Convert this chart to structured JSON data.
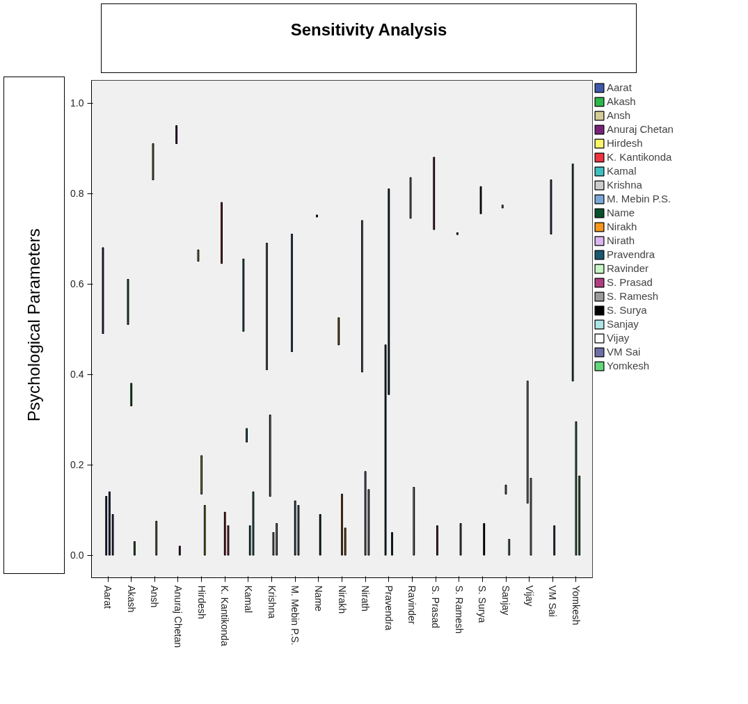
{
  "chart_data": {
    "type": "bar",
    "title": "Sensitivity Analysis",
    "ylabel": "Psychological Parameters",
    "categories": [
      "Aarat",
      "Akash",
      "Ansh",
      "Anuraj Chetan",
      "Hirdesh",
      "K. Kantikonda",
      "Kamal",
      "Krishna",
      "M. Mebin P.S.",
      "Name",
      "Nirakh",
      "Nirath",
      "Pravendra",
      "Ravinder",
      "S. Prasad",
      "S. Ramesh",
      "S. Surya",
      "Sanjay",
      "Vijay",
      "VM Sai",
      "Yomkesh"
    ],
    "ylim": [
      -0.05,
      1.05
    ],
    "yticks": [
      {
        "value": 0,
        "label": "0.0"
      },
      {
        "value": 0.2,
        "label": "0.2"
      },
      {
        "value": 0.4,
        "label": "0.4"
      },
      {
        "value": 0.6,
        "label": "0.6"
      },
      {
        "value": 0.8,
        "label": "0.8"
      },
      {
        "value": 1,
        "label": "1.0"
      }
    ],
    "grid": false,
    "legend": "right",
    "series": [
      {
        "name": "Aarat",
        "color": "#3e58ac",
        "x": [
          "Aarat",
          "Aarat",
          "Aarat",
          "Aarat"
        ],
        "base": [
          0.49,
          0,
          0,
          0
        ],
        "values": [
          0.19,
          0.13,
          0.14,
          0.09
        ]
      },
      {
        "name": "Akash",
        "color": "#2db84a",
        "x": [
          "Akash",
          "Akash",
          "Akash"
        ],
        "base": [
          0.51,
          0.33,
          0
        ],
        "values": [
          0.1,
          0.05,
          0.03
        ]
      },
      {
        "name": "Ansh",
        "color": "#d4cc96",
        "x": [
          "Ansh",
          "Ansh"
        ],
        "base": [
          0.83,
          0
        ],
        "values": [
          0.08,
          0.075
        ]
      },
      {
        "name": "Anuraj Chetan",
        "color": "#79207b",
        "x": [
          "Anuraj Chetan",
          "Anuraj Chetan"
        ],
        "base": [
          0.91,
          0
        ],
        "values": [
          0.04,
          0.02
        ]
      },
      {
        "name": "Hirdesh",
        "color": "#fbf56a",
        "x": [
          "Hirdesh",
          "Hirdesh",
          "Hirdesh"
        ],
        "base": [
          0.65,
          0.135,
          0
        ],
        "values": [
          0.025,
          0.085,
          0.11
        ]
      },
      {
        "name": "K. Kantikonda",
        "color": "#ef3340",
        "x": [
          "K. Kantikonda",
          "K. Kantikonda",
          "K. Kantikonda"
        ],
        "base": [
          0.645,
          0,
          0
        ],
        "values": [
          0.135,
          0.095,
          0.065
        ]
      },
      {
        "name": "Kamal",
        "color": "#3fbfc0",
        "x": [
          "Kamal",
          "Kamal",
          "Kamal",
          "Kamal"
        ],
        "base": [
          0.495,
          0.25,
          0,
          0
        ],
        "values": [
          0.16,
          0.03,
          0.065,
          0.14
        ]
      },
      {
        "name": "Krishna",
        "color": "#cccccc",
        "x": [
          "Krishna",
          "Krishna",
          "Krishna",
          "Krishna"
        ],
        "base": [
          0.41,
          0.13,
          0,
          0
        ],
        "values": [
          0.28,
          0.18,
          0.05,
          0.07
        ]
      },
      {
        "name": "M. Mebin P.S.",
        "color": "#7aa7d8",
        "x": [
          "M. Mebin P.S.",
          "M. Mebin P.S.",
          "M. Mebin P.S."
        ],
        "base": [
          0.45,
          0,
          0
        ],
        "values": [
          0.26,
          0.12,
          0.11
        ]
      },
      {
        "name": "Name",
        "color": "#08502a",
        "x": [
          "Name",
          "Name"
        ],
        "base": [
          0.748,
          0
        ],
        "values": [
          0.004,
          0.09
        ]
      },
      {
        "name": "Nirakh",
        "color": "#f8961e",
        "x": [
          "Nirakh",
          "Nirakh",
          "Nirakh"
        ],
        "base": [
          0.465,
          0,
          0
        ],
        "values": [
          0.06,
          0.135,
          0.06
        ]
      },
      {
        "name": "Nirath",
        "color": "#dcb6ee",
        "x": [
          "Nirath",
          "Nirath",
          "Nirath"
        ],
        "base": [
          0.405,
          0,
          0
        ],
        "values": [
          0.335,
          0.185,
          0.145
        ]
      },
      {
        "name": "Pravendra",
        "color": "#19596e",
        "x": [
          "Pravendra",
          "Pravendra",
          "Pravendra"
        ],
        "base": [
          0,
          0.355,
          0
        ],
        "values": [
          0.465,
          0.455,
          0.05
        ]
      },
      {
        "name": "Ravinder",
        "color": "#c8f5c6",
        "x": [
          "Ravinder",
          "Ravinder"
        ],
        "base": [
          0.745,
          0
        ],
        "values": [
          0.09,
          0.15
        ]
      },
      {
        "name": "S. Prasad",
        "color": "#b23c82",
        "x": [
          "S. Prasad",
          "S. Prasad"
        ],
        "base": [
          0.72,
          0
        ],
        "values": [
          0.16,
          0.065
        ]
      },
      {
        "name": "S. Ramesh",
        "color": "#9a9a9a",
        "x": [
          "S. Ramesh",
          "S. Ramesh"
        ],
        "base": [
          0.709,
          0
        ],
        "values": [
          0.004,
          0.07
        ]
      },
      {
        "name": "S. Surya",
        "color": "#000000",
        "x": [
          "S. Surya",
          "S. Surya"
        ],
        "base": [
          0.755,
          0
        ],
        "values": [
          0.06,
          0.07
        ]
      },
      {
        "name": "Sanjay",
        "color": "#ade4e6",
        "x": [
          "Sanjay",
          "Sanjay",
          "Sanjay"
        ],
        "base": [
          0.768,
          0.135,
          0
        ],
        "values": [
          0.006,
          0.02,
          0.035
        ]
      },
      {
        "name": "Vijay",
        "color": "#ffffff",
        "x": [
          "Vijay",
          "Vijay"
        ],
        "base": [
          0.115,
          0
        ],
        "values": [
          0.27,
          0.17
        ]
      },
      {
        "name": "VM Sai",
        "color": "#706ea8",
        "x": [
          "VM Sai",
          "VM Sai"
        ],
        "base": [
          0.71,
          0
        ],
        "values": [
          0.12,
          0.065
        ]
      },
      {
        "name": "Yomkesh",
        "color": "#63d67b",
        "x": [
          "Yomkesh",
          "Yomkesh",
          "Yomkesh"
        ],
        "base": [
          0.385,
          0,
          0
        ],
        "values": [
          0.48,
          0.295,
          0.175
        ]
      }
    ]
  }
}
